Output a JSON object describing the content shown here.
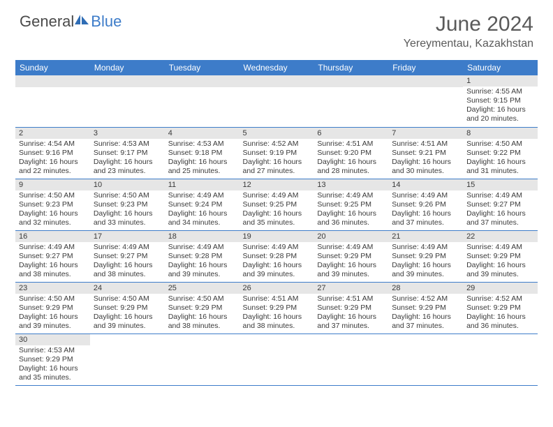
{
  "logo": {
    "general": "General",
    "blue": "Blue"
  },
  "title": "June 2024",
  "location": "Yereymentau, Kazakhstan",
  "colors": {
    "header_bg": "#3d7cc9",
    "header_text": "#ffffff",
    "daynum_bg": "#e6e6e6",
    "border": "#3d7cc9",
    "text": "#3a3a3a",
    "background": "#ffffff"
  },
  "weekdays": [
    "Sunday",
    "Monday",
    "Tuesday",
    "Wednesday",
    "Thursday",
    "Friday",
    "Saturday"
  ],
  "weeks": [
    [
      null,
      null,
      null,
      null,
      null,
      null,
      {
        "n": "1",
        "sr": "4:55 AM",
        "ss": "9:15 PM",
        "dl": "16 hours and 20 minutes."
      }
    ],
    [
      {
        "n": "2",
        "sr": "4:54 AM",
        "ss": "9:16 PM",
        "dl": "16 hours and 22 minutes."
      },
      {
        "n": "3",
        "sr": "4:53 AM",
        "ss": "9:17 PM",
        "dl": "16 hours and 23 minutes."
      },
      {
        "n": "4",
        "sr": "4:53 AM",
        "ss": "9:18 PM",
        "dl": "16 hours and 25 minutes."
      },
      {
        "n": "5",
        "sr": "4:52 AM",
        "ss": "9:19 PM",
        "dl": "16 hours and 27 minutes."
      },
      {
        "n": "6",
        "sr": "4:51 AM",
        "ss": "9:20 PM",
        "dl": "16 hours and 28 minutes."
      },
      {
        "n": "7",
        "sr": "4:51 AM",
        "ss": "9:21 PM",
        "dl": "16 hours and 30 minutes."
      },
      {
        "n": "8",
        "sr": "4:50 AM",
        "ss": "9:22 PM",
        "dl": "16 hours and 31 minutes."
      }
    ],
    [
      {
        "n": "9",
        "sr": "4:50 AM",
        "ss": "9:23 PM",
        "dl": "16 hours and 32 minutes."
      },
      {
        "n": "10",
        "sr": "4:50 AM",
        "ss": "9:23 PM",
        "dl": "16 hours and 33 minutes."
      },
      {
        "n": "11",
        "sr": "4:49 AM",
        "ss": "9:24 PM",
        "dl": "16 hours and 34 minutes."
      },
      {
        "n": "12",
        "sr": "4:49 AM",
        "ss": "9:25 PM",
        "dl": "16 hours and 35 minutes."
      },
      {
        "n": "13",
        "sr": "4:49 AM",
        "ss": "9:25 PM",
        "dl": "16 hours and 36 minutes."
      },
      {
        "n": "14",
        "sr": "4:49 AM",
        "ss": "9:26 PM",
        "dl": "16 hours and 37 minutes."
      },
      {
        "n": "15",
        "sr": "4:49 AM",
        "ss": "9:27 PM",
        "dl": "16 hours and 37 minutes."
      }
    ],
    [
      {
        "n": "16",
        "sr": "4:49 AM",
        "ss": "9:27 PM",
        "dl": "16 hours and 38 minutes."
      },
      {
        "n": "17",
        "sr": "4:49 AM",
        "ss": "9:27 PM",
        "dl": "16 hours and 38 minutes."
      },
      {
        "n": "18",
        "sr": "4:49 AM",
        "ss": "9:28 PM",
        "dl": "16 hours and 39 minutes."
      },
      {
        "n": "19",
        "sr": "4:49 AM",
        "ss": "9:28 PM",
        "dl": "16 hours and 39 minutes."
      },
      {
        "n": "20",
        "sr": "4:49 AM",
        "ss": "9:29 PM",
        "dl": "16 hours and 39 minutes."
      },
      {
        "n": "21",
        "sr": "4:49 AM",
        "ss": "9:29 PM",
        "dl": "16 hours and 39 minutes."
      },
      {
        "n": "22",
        "sr": "4:49 AM",
        "ss": "9:29 PM",
        "dl": "16 hours and 39 minutes."
      }
    ],
    [
      {
        "n": "23",
        "sr": "4:50 AM",
        "ss": "9:29 PM",
        "dl": "16 hours and 39 minutes."
      },
      {
        "n": "24",
        "sr": "4:50 AM",
        "ss": "9:29 PM",
        "dl": "16 hours and 39 minutes."
      },
      {
        "n": "25",
        "sr": "4:50 AM",
        "ss": "9:29 PM",
        "dl": "16 hours and 38 minutes."
      },
      {
        "n": "26",
        "sr": "4:51 AM",
        "ss": "9:29 PM",
        "dl": "16 hours and 38 minutes."
      },
      {
        "n": "27",
        "sr": "4:51 AM",
        "ss": "9:29 PM",
        "dl": "16 hours and 37 minutes."
      },
      {
        "n": "28",
        "sr": "4:52 AM",
        "ss": "9:29 PM",
        "dl": "16 hours and 37 minutes."
      },
      {
        "n": "29",
        "sr": "4:52 AM",
        "ss": "9:29 PM",
        "dl": "16 hours and 36 minutes."
      }
    ],
    [
      {
        "n": "30",
        "sr": "4:53 AM",
        "ss": "9:29 PM",
        "dl": "16 hours and 35 minutes."
      },
      null,
      null,
      null,
      null,
      null,
      null
    ]
  ],
  "labels": {
    "sunrise": "Sunrise:",
    "sunset": "Sunset:",
    "daylight": "Daylight:"
  }
}
